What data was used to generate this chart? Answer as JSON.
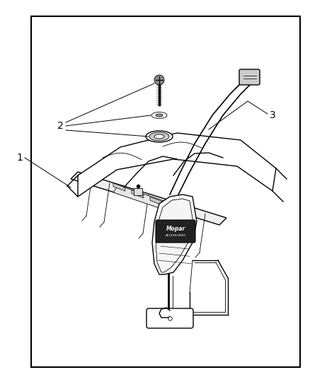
{
  "background_color": "#ffffff",
  "border_color": "#000000",
  "border_linewidth": 1.5,
  "label_1": "1",
  "label_2": "2",
  "label_3": "3",
  "figsize": [
    4.38,
    5.33
  ],
  "dpi": 100,
  "border": [
    0.1,
    0.04,
    0.87,
    0.93
  ]
}
